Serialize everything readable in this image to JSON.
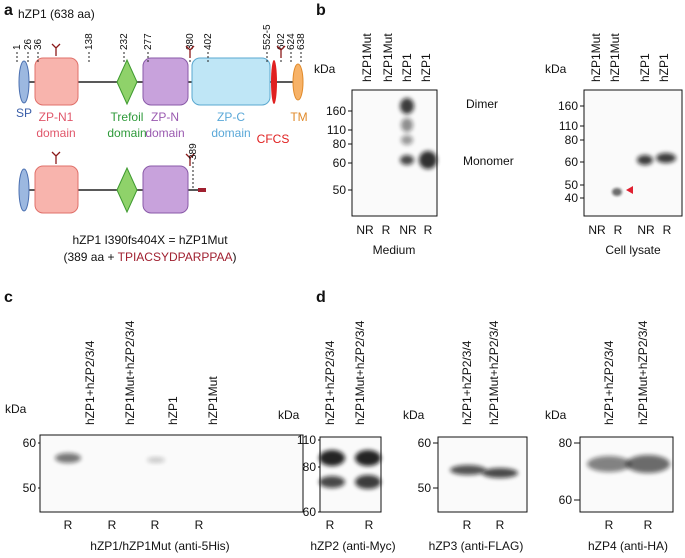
{
  "panel_a": {
    "label": "a",
    "title": "hZP1 (638 aa)",
    "positions": [
      "1",
      "26",
      "36",
      "138",
      "232",
      "277",
      "380",
      "402",
      "552-5",
      "602",
      "624",
      "638"
    ],
    "domains": {
      "sp": "SP",
      "zpn1": [
        "ZP-N1",
        "domain"
      ],
      "trefoil": [
        "Trefoil",
        "domain"
      ],
      "zpn": [
        "ZP-N",
        "domain"
      ],
      "zpc": [
        "ZP-C",
        "domain"
      ],
      "cfcs": "CFCS",
      "tm": "TM"
    },
    "mutant_position": "389",
    "mutant_name": "hZP1 I390fs404X = hZP1Mut",
    "mutant_desc_prefix": "(389 aa + ",
    "mutant_tail": "TPIACSYDPARPPAA",
    "mutant_desc_suffix": ")"
  },
  "panel_b": {
    "label": "b",
    "blots": [
      {
        "lanes": [
          "hZP1Mut",
          "hZP1Mut",
          "hZP1",
          "hZP1"
        ],
        "kda": "kDa",
        "markers": [
          "160",
          "110",
          "80",
          "60",
          "50"
        ],
        "conditions": [
          "NR",
          "R",
          "NR",
          "R"
        ],
        "caption": "Medium",
        "annotations": [
          "Dimer",
          "Monomer"
        ]
      },
      {
        "lanes": [
          "hZP1Mut",
          "hZP1Mut",
          "hZP1",
          "hZP1"
        ],
        "kda": "kDa",
        "markers": [
          "160",
          "110",
          "80",
          "60",
          "50",
          "40"
        ],
        "conditions": [
          "NR",
          "R",
          "NR",
          "R"
        ],
        "caption": "Cell lysate"
      }
    ]
  },
  "panel_c": {
    "label": "c",
    "blot": {
      "lanes": [
        "hZP1+hZP2/3/4",
        "hZP1Mut+hZP2/3/4",
        "hZP1",
        "hZP1Mut"
      ],
      "kda": "kDa",
      "markers": [
        "60",
        "50"
      ],
      "conditions": [
        "R",
        "R",
        "R",
        "R"
      ],
      "caption": "hZP1/hZP1Mut (anti-5His)"
    }
  },
  "panel_d": {
    "label": "d",
    "blots": [
      {
        "lanes": [
          "hZP1+hZP2/3/4",
          "hZP1Mut+hZP2/3/4"
        ],
        "kda": "kDa",
        "markers": [
          "110",
          "80",
          "60"
        ],
        "conditions": [
          "R",
          "R"
        ],
        "caption": "hZP2 (anti-Myc)"
      },
      {
        "lanes": [
          "hZP1+hZP2/3/4",
          "hZP1Mut+hZP2/3/4"
        ],
        "kda": "kDa",
        "markers": [
          "60",
          "50"
        ],
        "conditions": [
          "R",
          "R"
        ],
        "caption": "hZP3 (anti-FLAG)"
      },
      {
        "lanes": [
          "hZP1+hZP2/3/4",
          "hZP1Mut+hZP2/3/4"
        ],
        "kda": "kDa",
        "markers": [
          "80",
          "60"
        ],
        "conditions": [
          "R",
          "R"
        ],
        "caption": "hZP4 (anti-HA)"
      }
    ]
  }
}
